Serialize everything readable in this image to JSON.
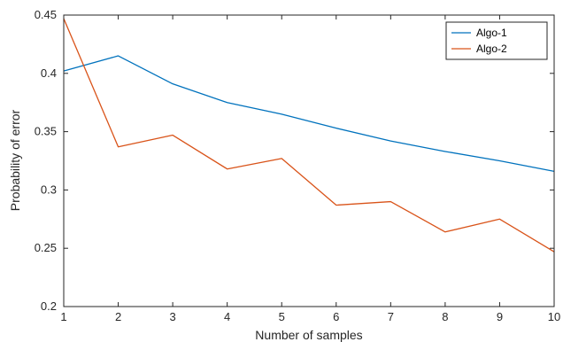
{
  "chart_data": {
    "type": "line",
    "xlabel": "Number of samples",
    "ylabel": "Probability of error",
    "xlim": [
      1,
      10
    ],
    "ylim": [
      0.2,
      0.45
    ],
    "xticks": [
      1,
      2,
      3,
      4,
      5,
      6,
      7,
      8,
      9,
      10
    ],
    "yticks": [
      0.2,
      0.25,
      0.3,
      0.35,
      0.4,
      0.45
    ],
    "ytick_labels": [
      "0.2",
      "0.25",
      "0.3",
      "0.35",
      "0.4",
      "0.45"
    ],
    "grid": false,
    "legend_position": "top-right",
    "x": [
      1,
      2,
      3,
      4,
      5,
      6,
      7,
      8,
      9,
      10
    ],
    "series": [
      {
        "name": "Algo-1",
        "color": "#0072BD",
        "values": [
          0.402,
          0.415,
          0.391,
          0.375,
          0.365,
          0.353,
          0.342,
          0.333,
          0.325,
          0.316
        ]
      },
      {
        "name": "Algo-2",
        "color": "#D95319",
        "values": [
          0.447,
          0.337,
          0.347,
          0.318,
          0.327,
          0.287,
          0.29,
          0.264,
          0.275,
          0.247
        ]
      }
    ]
  }
}
